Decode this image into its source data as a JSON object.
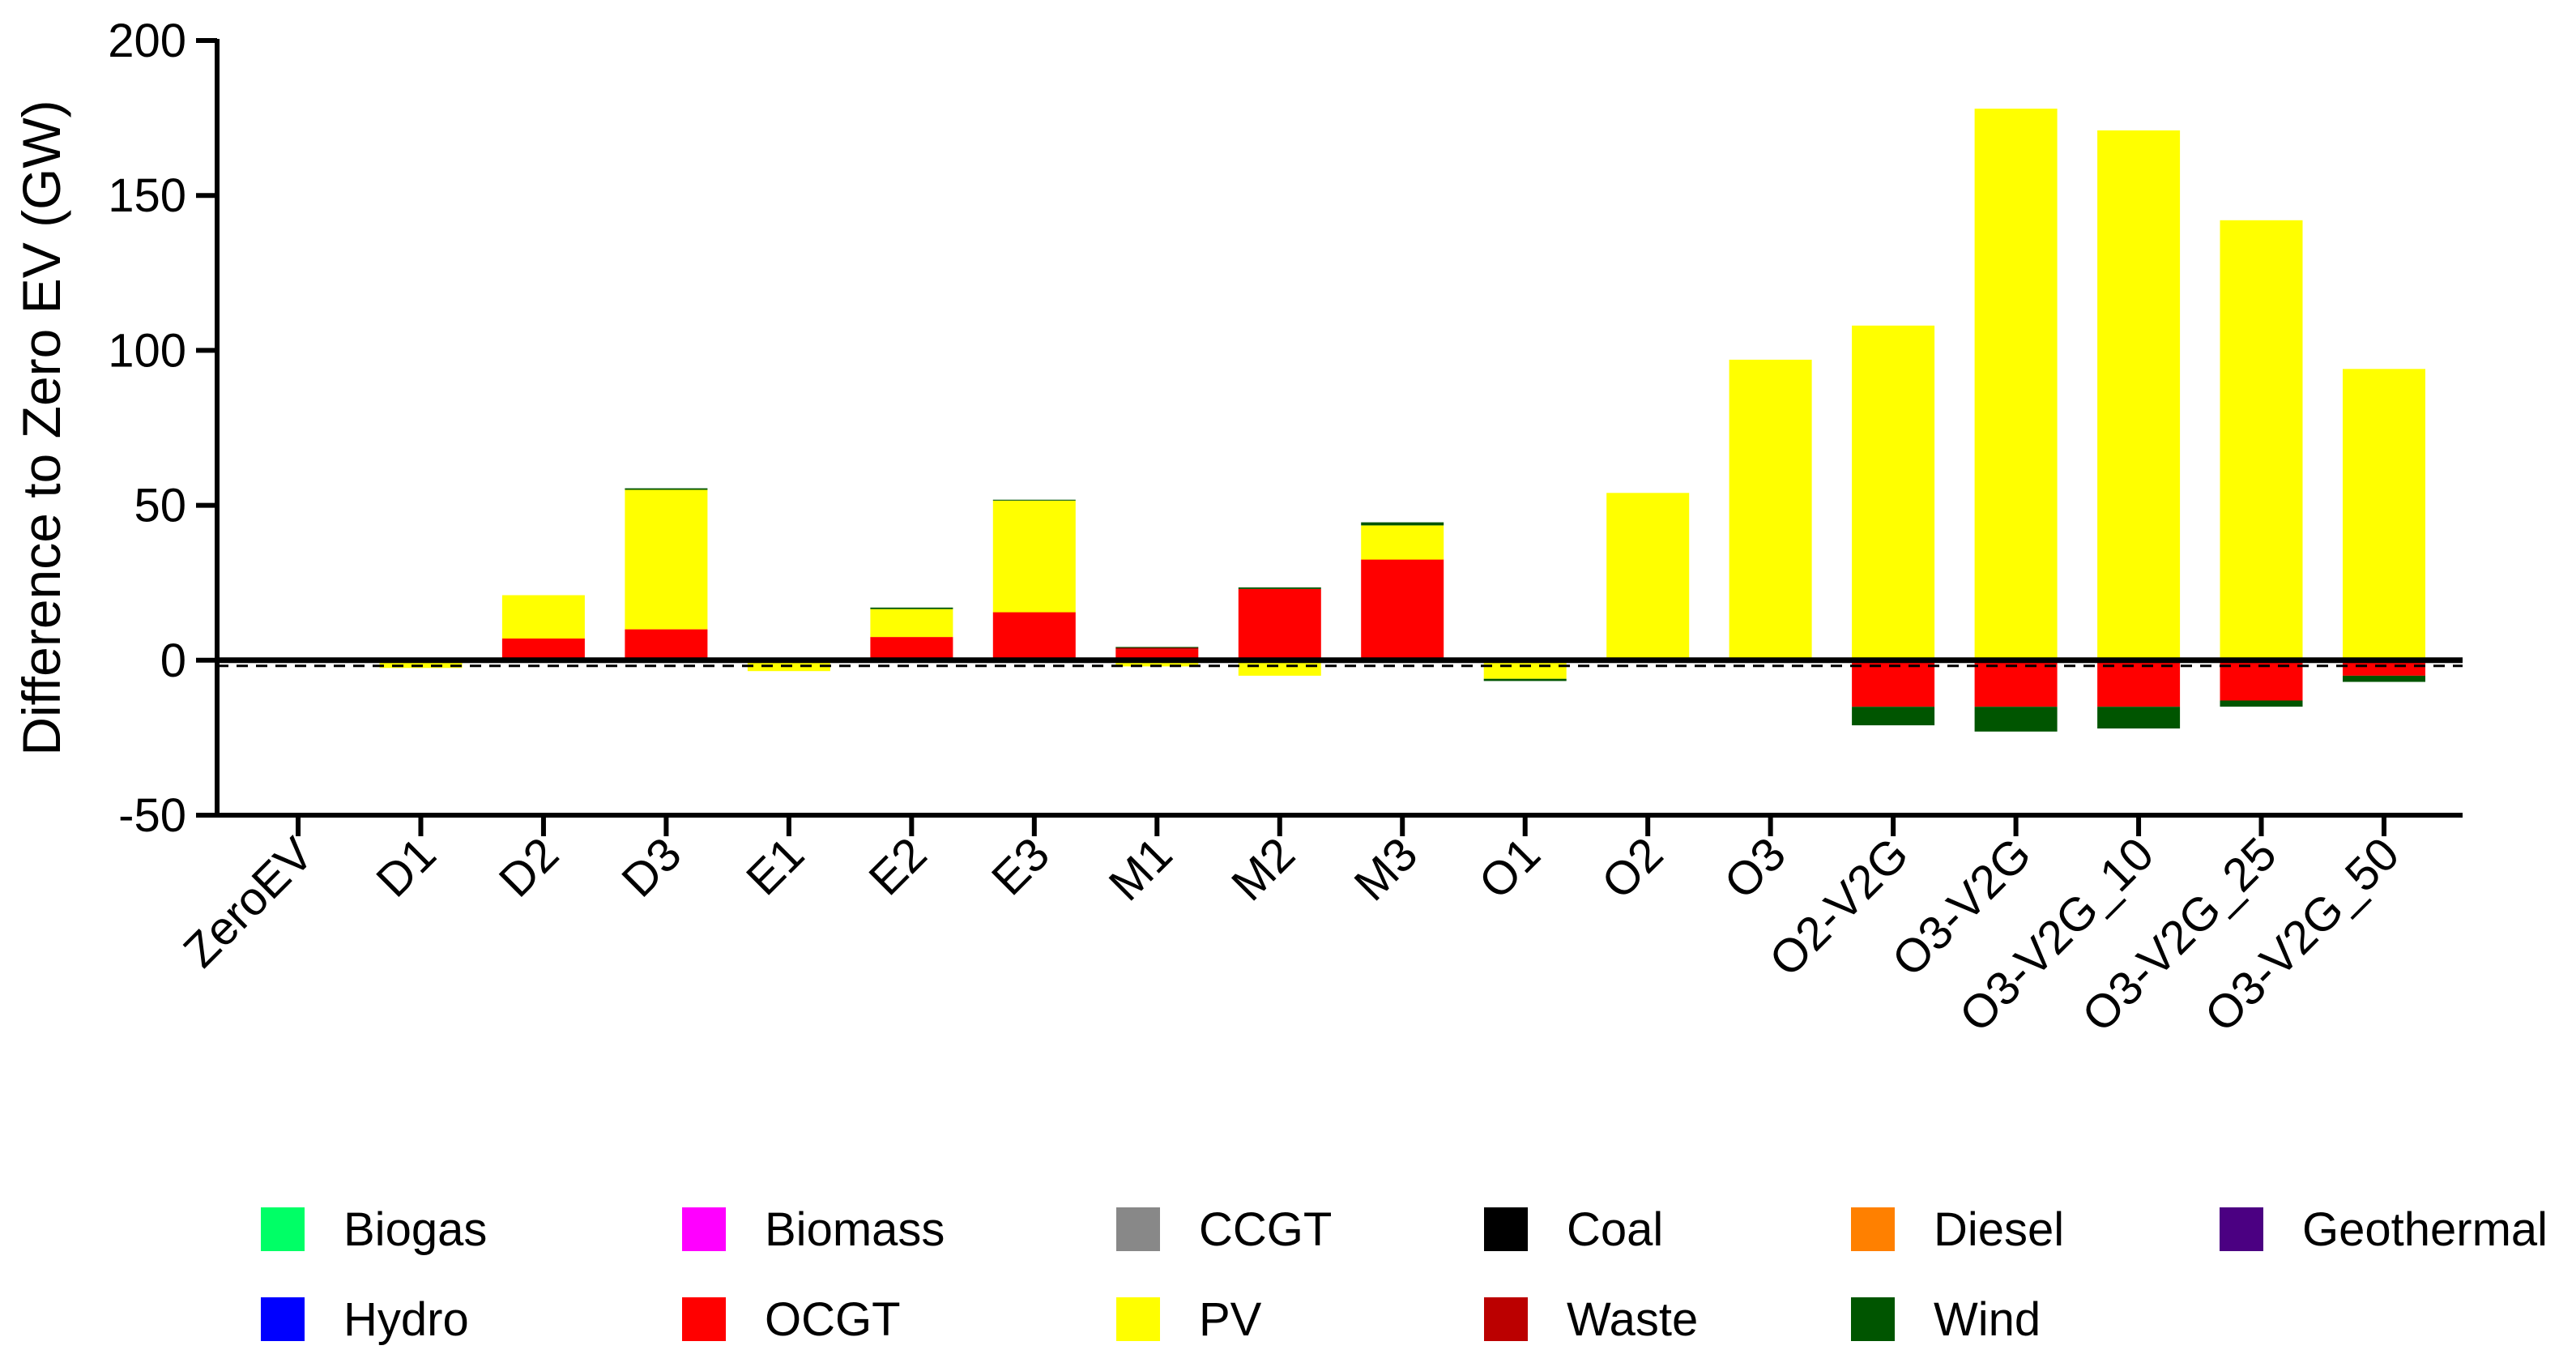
{
  "chart_data": {
    "type": "bar",
    "stacked": true,
    "title": "",
    "xlabel": "",
    "ylabel": "Difference  to Zero EV (GW)",
    "ylim": [
      -50,
      200
    ],
    "yticks": [
      -50,
      0,
      50,
      100,
      150,
      200
    ],
    "ytick_labels": [
      "-50",
      "0",
      "50",
      "100",
      "150",
      "200"
    ],
    "zero_line": "dashed",
    "legend_position": "bottom",
    "categories": [
      "ZeroEV",
      "D1",
      "D2",
      "D3",
      "E1",
      "E2",
      "E3",
      "M1",
      "M2",
      "M3",
      "O1",
      "O2",
      "O3",
      "O2-V2G",
      "O3-V2G",
      "O3-V2G_10",
      "O3-V2G_25",
      "O3-V2G_50"
    ],
    "series": [
      {
        "name": "Biogas",
        "color": "#00ff66",
        "values": [
          0,
          0,
          0,
          0,
          0,
          0,
          0,
          0,
          0,
          0,
          0,
          0,
          0,
          0,
          0,
          0,
          0,
          0
        ]
      },
      {
        "name": "Biomass",
        "color": "#ff00ff",
        "values": [
          0,
          0,
          0,
          0,
          0,
          0,
          0,
          0,
          0,
          0,
          0,
          0,
          0,
          0,
          0,
          0,
          0,
          0
        ]
      },
      {
        "name": "CCGT",
        "color": "#888888",
        "values": [
          0,
          0,
          0,
          0,
          0,
          0,
          0,
          0,
          0,
          0,
          0,
          0,
          0,
          0,
          0,
          0,
          0,
          0
        ]
      },
      {
        "name": "Coal",
        "color": "#000000",
        "values": [
          0,
          0,
          0,
          0,
          0,
          0,
          0,
          0,
          0,
          0,
          0,
          0,
          0,
          0,
          0,
          0,
          0,
          0
        ]
      },
      {
        "name": "Diesel",
        "color": "#ff8000",
        "values": [
          0,
          0,
          0,
          0,
          0,
          0,
          0,
          0,
          0,
          0,
          0,
          0,
          0,
          0,
          0,
          0,
          0,
          0
        ]
      },
      {
        "name": "Geothermal",
        "color": "#4b0082",
        "values": [
          0,
          0,
          0,
          0,
          0,
          0,
          0,
          0,
          0,
          0,
          0,
          0,
          0,
          0,
          0,
          0,
          0,
          0
        ]
      },
      {
        "name": "Hydro",
        "color": "#0000ff",
        "values": [
          0,
          0,
          0,
          0,
          0,
          0,
          0,
          0,
          0,
          0,
          0,
          0,
          0,
          0,
          0,
          0,
          0,
          0
        ]
      },
      {
        "name": "OCGT",
        "color": "#ff0000",
        "values": [
          0,
          -0.5,
          7,
          10,
          -0.5,
          7.5,
          15.5,
          3.5,
          23,
          32.5,
          -0.5,
          0,
          0,
          -15,
          -15,
          -15,
          -13,
          -5
        ]
      },
      {
        "name": "PV",
        "color": "#ffff00",
        "values": [
          0,
          -2,
          14,
          45,
          -3,
          9,
          36,
          -2,
          -5,
          11,
          -5.5,
          54,
          97,
          108,
          178,
          171,
          142,
          94
        ]
      },
      {
        "name": "Waste",
        "color": "#bb0000",
        "values": [
          0,
          0,
          0,
          0,
          0,
          0,
          0,
          0.5,
          0,
          0,
          0,
          0,
          0,
          0,
          0,
          0,
          0,
          0
        ]
      },
      {
        "name": "Wind",
        "color": "#005500",
        "values": [
          0,
          0,
          0,
          0.5,
          0,
          0.5,
          0.3,
          0.3,
          0.5,
          1,
          -0.7,
          0,
          0,
          -6,
          -8,
          -7,
          -2,
          -2
        ]
      }
    ]
  }
}
